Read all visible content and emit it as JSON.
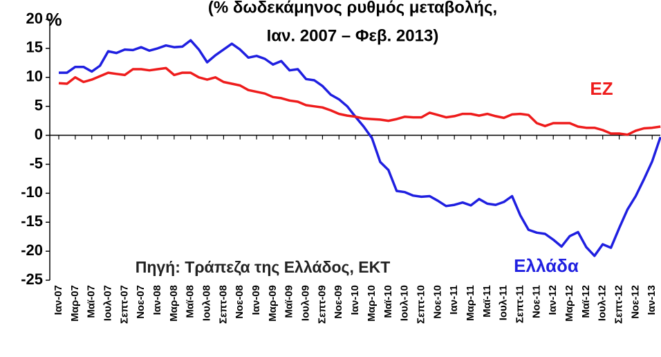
{
  "chart_data": {
    "type": "line",
    "title": "(% δωδεκάμηνος ρυθμός μεταβολής,",
    "subtitle": "Ιαν. 2007 – Φεβ. 2013)",
    "y_unit": "%",
    "source": "Πηγή: Τράπεζα της Ελλάδος, ΕΚΤ",
    "annotations": [
      "ΕΖ",
      "Ελλάδα"
    ],
    "categories": [
      "Ιαν-07",
      null,
      "Μαρ-07",
      null,
      "Μαϊ-07",
      null,
      "Ιουλ-07",
      null,
      "Σεπτ-07",
      null,
      "Νοε-07",
      null,
      "Ιαν-08",
      null,
      "Μαρ-08",
      null,
      "Μαϊ-08",
      null,
      "Ιουλ-08",
      null,
      "Σεπτ-08",
      null,
      "Νοε-08",
      null,
      "Ιαν-09",
      null,
      "Μαρ-09",
      null,
      "Μαϊ-09",
      null,
      "Ιουλ-09",
      null,
      "Σεπτ-09",
      null,
      "Νοε-09",
      null,
      "Ιαν-10",
      null,
      "Μαρ-10",
      null,
      "Μαϊ-10",
      null,
      "Ιουλ-10",
      null,
      "Σεπτ-10",
      null,
      "Νοε-10",
      null,
      "Ιαν-11",
      null,
      "Μαρ-11",
      null,
      "Μαϊ-11",
      null,
      "Ιουλ-11",
      null,
      "Σεπτ-11",
      null,
      "Νοε-11",
      null,
      "Ιαν-12",
      null,
      "Μαρ-12",
      null,
      "Μαϊ-12",
      null,
      "Ιουλ-12",
      null,
      "Σεπτ-12",
      null,
      "Νοε-12",
      null,
      "Ιαν-13",
      null
    ],
    "series": [
      {
        "name": "Ελλάδα",
        "color": "#1f1fe0",
        "values": [
          10.8,
          10.8,
          11.8,
          11.8,
          11.0,
          12.0,
          14.5,
          14.2,
          14.8,
          14.7,
          15.2,
          14.6,
          15.0,
          15.5,
          15.2,
          15.3,
          16.4,
          14.8,
          12.6,
          13.8,
          14.8,
          15.8,
          14.8,
          13.4,
          13.7,
          13.2,
          12.2,
          12.8,
          11.2,
          11.4,
          9.7,
          9.5,
          8.5,
          7.0,
          6.2,
          5.0,
          3.2,
          1.5,
          -0.5,
          -4.6,
          -6.0,
          -9.6,
          -9.8,
          -10.4,
          -10.6,
          -10.5,
          -11.3,
          -12.2,
          -12.0,
          -11.6,
          -12.1,
          -11.0,
          -11.8,
          -12.0,
          -11.5,
          -10.5,
          -13.8,
          -16.3,
          -16.8,
          -17.0,
          -18.0,
          -19.2,
          -17.4,
          -16.7,
          -19.3,
          -20.8,
          -18.8,
          -19.4,
          -16.0,
          -12.8,
          -10.5,
          -7.6,
          -4.5,
          -0.3
        ]
      },
      {
        "name": "ΕΖ",
        "color": "#ee1c1c",
        "values": [
          9.0,
          8.9,
          10.0,
          9.2,
          9.6,
          10.2,
          10.8,
          10.6,
          10.4,
          11.4,
          11.4,
          11.2,
          11.4,
          11.6,
          10.4,
          10.8,
          10.8,
          10.0,
          9.6,
          10.0,
          9.2,
          8.9,
          8.6,
          7.8,
          7.5,
          7.2,
          6.6,
          6.4,
          6.0,
          5.8,
          5.2,
          5.0,
          4.8,
          4.3,
          3.7,
          3.4,
          3.2,
          2.9,
          2.8,
          2.7,
          2.5,
          2.8,
          3.2,
          3.1,
          3.1,
          3.9,
          3.5,
          3.1,
          3.3,
          3.7,
          3.7,
          3.4,
          3.7,
          3.3,
          3.0,
          3.6,
          3.7,
          3.5,
          2.1,
          1.6,
          2.1,
          2.1,
          2.1,
          1.5,
          1.3,
          1.3,
          0.9,
          0.3,
          0.3,
          0.1,
          0.8,
          1.2,
          1.3,
          1.5
        ]
      }
    ],
    "ylim": [
      -25,
      20
    ],
    "yticks": [
      20,
      15,
      10,
      5,
      0,
      -5,
      -10,
      -15,
      -20,
      -25
    ],
    "grid": false
  }
}
